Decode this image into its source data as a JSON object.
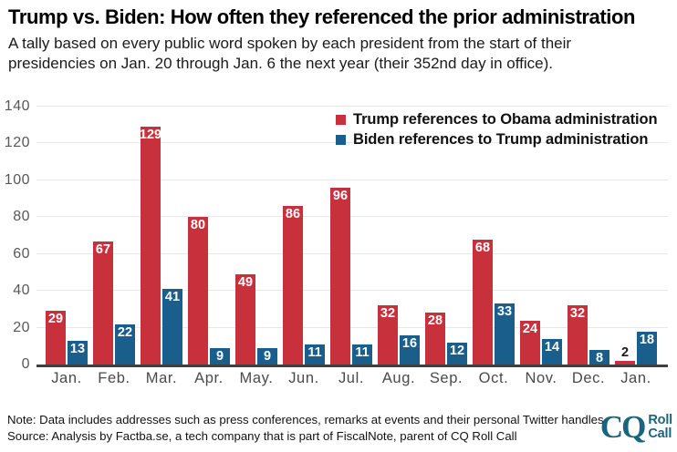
{
  "header": {
    "title": "Trump vs. Biden: How often they referenced the prior administration",
    "subtitle": "A tally based on every public word spoken by each president from the start of their presidencies on Jan. 20 through Jan. 6 the next year (their 352nd day in office)."
  },
  "chart_data": {
    "type": "bar",
    "categories": [
      "Jan.",
      "Feb.",
      "Mar.",
      "Apr.",
      "May.",
      "Jun.",
      "Jul.",
      "Aug.",
      "Sep.",
      "Oct.",
      "Nov.",
      "Dec.",
      "Jan."
    ],
    "series": [
      {
        "name": "Trump references to Obama administration",
        "color": "#c8313c",
        "values": [
          29,
          67,
          129,
          80,
          49,
          86,
          96,
          32,
          28,
          68,
          24,
          32,
          2
        ]
      },
      {
        "name": "Biden references to Trump administration",
        "color": "#1a5e8c",
        "values": [
          13,
          22,
          41,
          9,
          9,
          11,
          11,
          16,
          12,
          33,
          14,
          8,
          18
        ]
      }
    ],
    "title": "Trump vs. Biden: How often they referenced the prior administration",
    "xlabel": "",
    "ylabel": "",
    "ylim": [
      0,
      140
    ],
    "ytick_interval": 20,
    "grid": true,
    "legend_position": "top-right",
    "value_labels": true
  },
  "footer": {
    "note": "Note: Data includes addresses such as press conferences, remarks at events and their personal Twitter handles.",
    "source": "Source: Analysis by Factba.se, a tech company that is part of FiscalNote, parent of CQ Roll Call",
    "logo": {
      "cq": "CQ",
      "line1": "Roll",
      "line2": "Call",
      "color": "#19647f"
    }
  }
}
